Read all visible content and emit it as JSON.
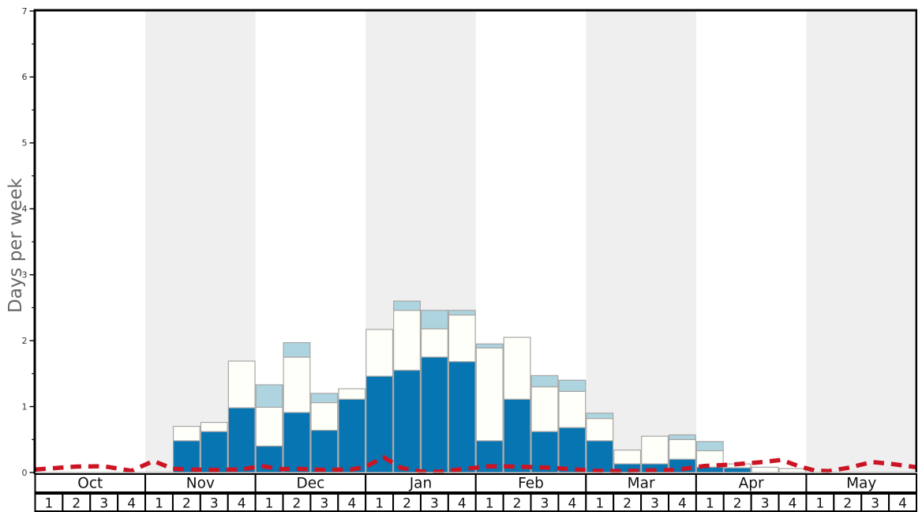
{
  "chart_data": {
    "type": "bar",
    "title": "",
    "ylabel": "Days per week",
    "xlabel": "",
    "ylim": [
      0,
      7
    ],
    "yticks": [
      "0",
      "1",
      "2",
      "3",
      "4",
      "5",
      "6",
      "7"
    ],
    "minor_tick_step": 0.5,
    "grid": "off",
    "legend": "none",
    "months": [
      "Oct",
      "Nov",
      "Dec",
      "Jan",
      "Feb",
      "Mar",
      "Apr",
      "May"
    ],
    "weeks_per_month": 4,
    "week_labels": [
      "1",
      "2",
      "3",
      "4"
    ],
    "shaded_months": [
      "Nov",
      "Jan",
      "Mar",
      "May"
    ],
    "weeks_total": 32,
    "series": [
      {
        "name": "dark-blue-snow-days",
        "color": "#0675b2",
        "cumulative_top": [
          0,
          0,
          0,
          0,
          0,
          0.48,
          0.62,
          0.98,
          0.4,
          0.91,
          0.64,
          1.11,
          1.46,
          1.55,
          1.75,
          1.68,
          0.48,
          1.11,
          0.62,
          0.68,
          0.48,
          0.13,
          0.13,
          0.2,
          0.08,
          0.07,
          0,
          0,
          0,
          0,
          0,
          0
        ]
      },
      {
        "name": "white-snow-days",
        "color": "#fffffa",
        "cumulative_top": [
          0,
          0,
          0,
          0,
          0,
          0.7,
          0.76,
          1.69,
          0.99,
          1.75,
          1.06,
          1.27,
          2.17,
          2.46,
          2.18,
          2.39,
          1.89,
          2.05,
          1.3,
          1.23,
          0.82,
          0.34,
          0.55,
          0.5,
          0.33,
          0.13,
          0.08,
          0.06,
          0,
          0,
          0,
          0
        ]
      },
      {
        "name": "light-blue-snow-days",
        "color": "#aed4e0",
        "cumulative_top": [
          0,
          0,
          0,
          0,
          0,
          0.7,
          0.76,
          1.69,
          1.33,
          1.97,
          1.2,
          1.27,
          2.17,
          2.6,
          2.46,
          2.46,
          1.95,
          2.05,
          1.47,
          1.4,
          0.9,
          0.34,
          0.55,
          0.57,
          0.47,
          0.13,
          0.08,
          0.06,
          0,
          0,
          0,
          0
        ]
      }
    ],
    "red_dashed_line": {
      "name": "red-dashed-line",
      "color": "#cc1524",
      "points_week_value": [
        [
          0,
          0.045
        ],
        [
          0.5,
          0.06
        ],
        [
          1.5,
          0.09
        ],
        [
          2.5,
          0.095
        ],
        [
          3.5,
          0.025
        ],
        [
          4.3,
          0.175
        ],
        [
          5.0,
          0.055
        ],
        [
          5.6,
          0.045
        ],
        [
          6.5,
          0.04
        ],
        [
          7.5,
          0.045
        ],
        [
          8.2,
          0.1
        ],
        [
          8.9,
          0.05
        ],
        [
          9.5,
          0.055
        ],
        [
          10.5,
          0.04
        ],
        [
          11.5,
          0.045
        ],
        [
          12.0,
          0.09
        ],
        [
          12.65,
          0.23
        ],
        [
          13.3,
          0.07
        ],
        [
          14.0,
          0.015
        ],
        [
          14.6,
          0.01
        ],
        [
          15.5,
          0.05
        ],
        [
          16.5,
          0.095
        ],
        [
          17.5,
          0.09
        ],
        [
          18.5,
          0.075
        ],
        [
          19.5,
          0.05
        ],
        [
          20.3,
          0.025
        ],
        [
          21.3,
          0.02
        ],
        [
          22.3,
          0.03
        ],
        [
          23.3,
          0.04
        ],
        [
          24.3,
          0.1
        ],
        [
          25.3,
          0.12
        ],
        [
          26.3,
          0.155
        ],
        [
          27.1,
          0.19
        ],
        [
          27.7,
          0.1
        ],
        [
          28.3,
          0.03
        ],
        [
          28.8,
          0.02
        ],
        [
          29.5,
          0.07
        ],
        [
          30.4,
          0.16
        ],
        [
          31.1,
          0.13
        ],
        [
          32,
          0.08
        ]
      ]
    },
    "colors": {
      "band": "#efefef",
      "bar_border": "#a6a6a6",
      "axis": "#000000",
      "baseline": "#aaaaaa",
      "tick_text": "#333333",
      "ylabel_text": "#666666",
      "table_border": "#000000",
      "table_fill": "#ffffff",
      "table_text": "#111111"
    }
  }
}
